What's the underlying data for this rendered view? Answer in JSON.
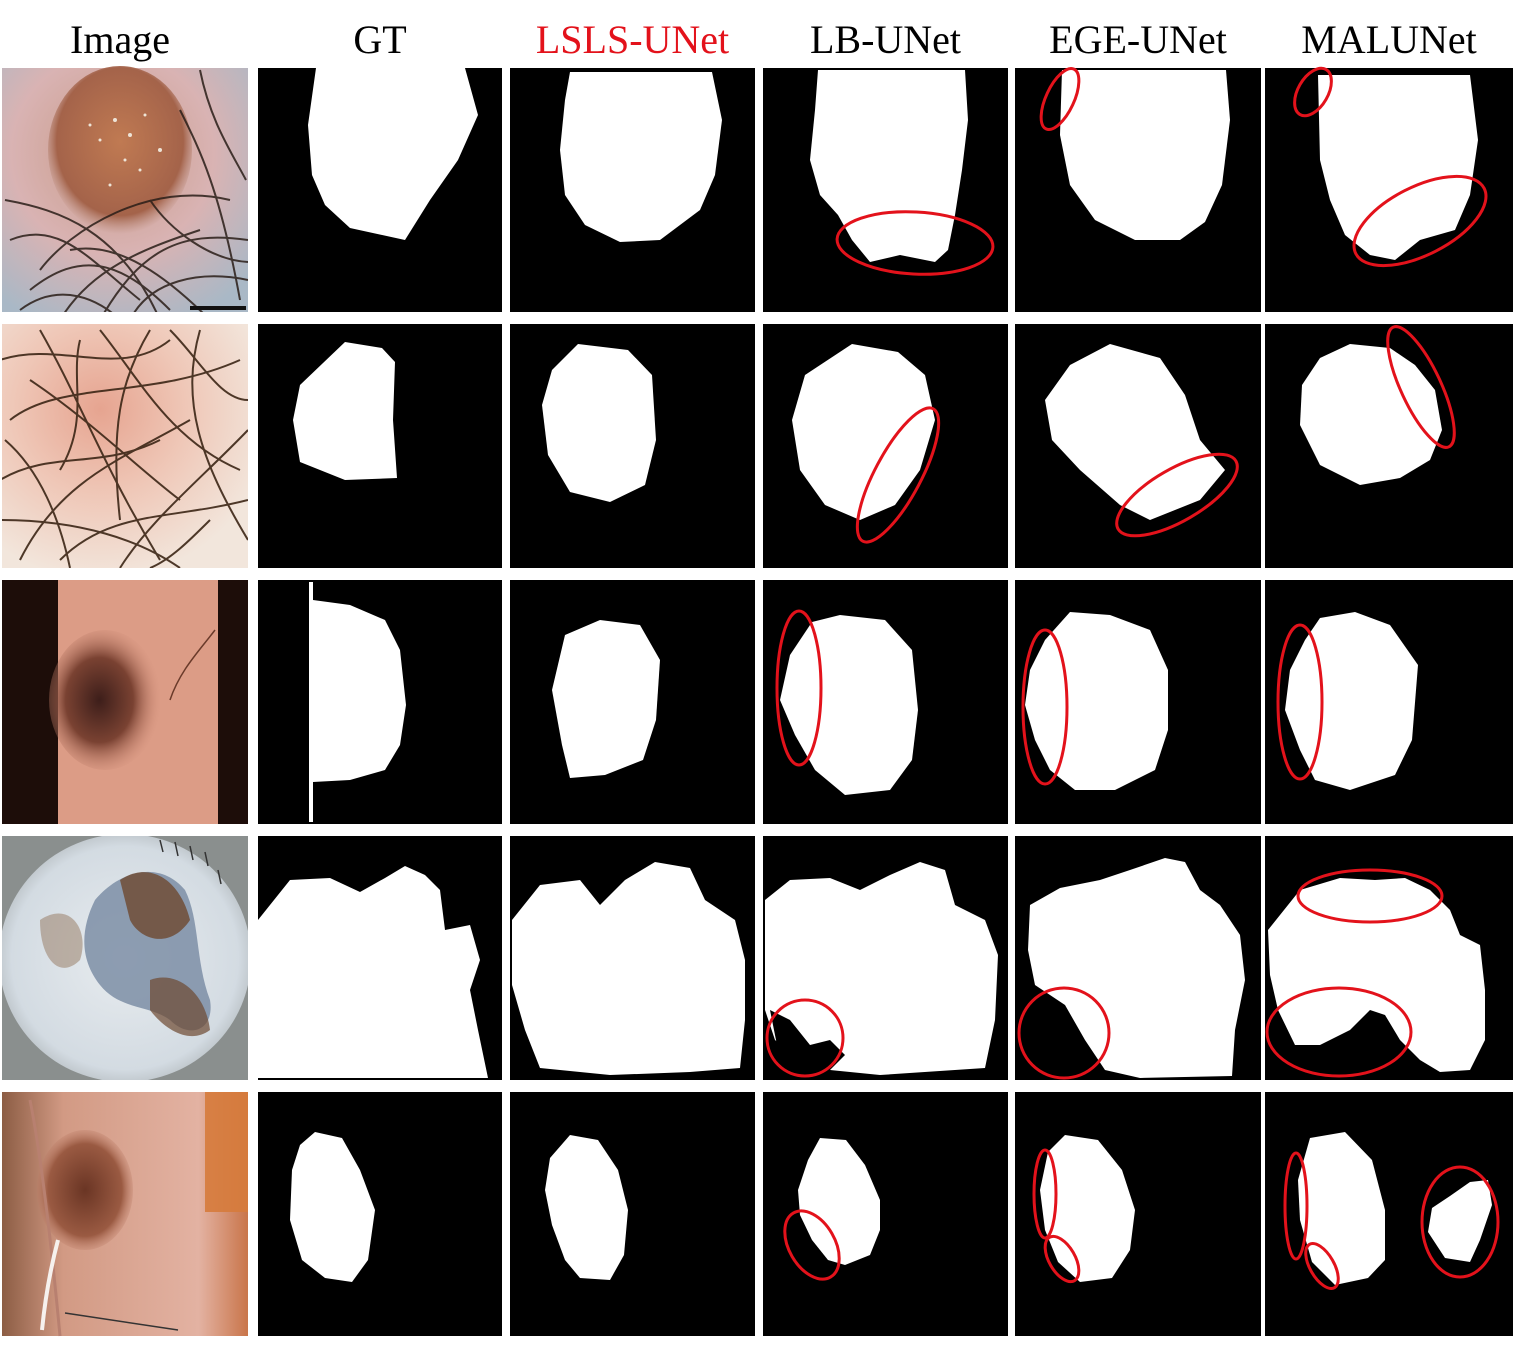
{
  "columns": [
    {
      "label": "Image",
      "highlight": false
    },
    {
      "label": "GT",
      "highlight": false
    },
    {
      "label": "LSLS-UNet",
      "highlight": true
    },
    {
      "label": "LB-UNet",
      "highlight": false
    },
    {
      "label": "EGE-UNet",
      "highlight": false
    },
    {
      "label": "MALUNet",
      "highlight": false
    }
  ],
  "colors": {
    "highlight_text": "#e3121b",
    "error_ellipse": "#e3121b",
    "mask_background": "#000000",
    "mask_foreground": "#ffffff"
  }
}
